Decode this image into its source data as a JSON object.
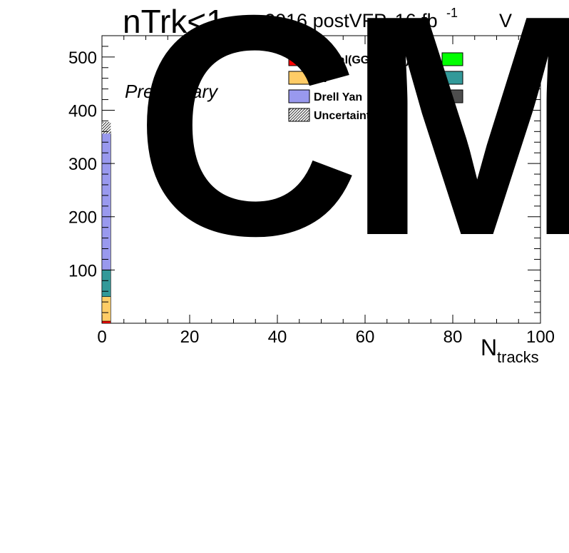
{
  "chart_data": {
    "type": "bar",
    "title": "nTrk<1",
    "header_right": "2016 postVFP, 16 fb",
    "header_sup": "-1",
    "header_tail": "V",
    "watermark": "CM",
    "preliminary": "Preliminary",
    "xlabel_main": "N",
    "xlabel_sub": "tracks",
    "ylabel": "",
    "xlim": [
      0,
      100
    ],
    "ylim": [
      0,
      540
    ],
    "x_ticks": [
      "0",
      "20",
      "40",
      "60",
      "80",
      "100"
    ],
    "y_ticks": [
      "100",
      "200",
      "300",
      "400",
      "500"
    ],
    "bin": [
      0,
      2
    ],
    "stack": [
      {
        "name": "Signal(GG→ WW)",
        "value": 4,
        "color": "#ff0000"
      },
      {
        "name": "VV",
        "value": 46,
        "color": "#ffcc66"
      },
      {
        "name": "",
        "value": 50,
        "color": "#339999"
      },
      {
        "name": "Drell Yan",
        "value": 258,
        "color": "#9999ee"
      },
      {
        "name": "",
        "value": 2,
        "color": "#4d4d4d"
      }
    ],
    "uncertainty": {
      "name": "Uncertainty",
      "low": 356,
      "high": 378
    },
    "legend": [
      {
        "label": "Signal(GG→ WW)",
        "color": "#ff0000"
      },
      {
        "label": "VV",
        "color": "#ffcc66"
      },
      {
        "label": "Drell Yan",
        "color": "#9999ee"
      },
      {
        "label": "Uncertainty",
        "color": "hatch"
      },
      {
        "label": "",
        "color": "#00ff00"
      },
      {
        "label": "",
        "color": "#339999"
      },
      {
        "label": "",
        "color": "#4d4d4d"
      }
    ]
  }
}
